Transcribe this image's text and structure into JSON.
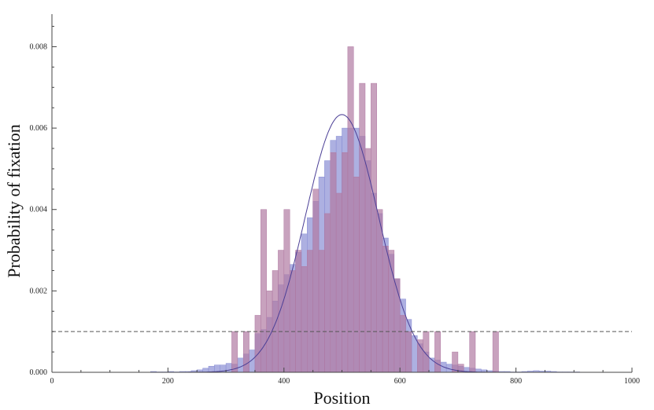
{
  "chart_data": {
    "type": "bar",
    "title": "",
    "xlabel": "Position",
    "ylabel": "Probability of fixation",
    "xlim": [
      0,
      1000
    ],
    "ylim": [
      0,
      0.0088
    ],
    "x_ticks": [
      0,
      200,
      400,
      600,
      800,
      1000
    ],
    "x_tick_labels": [
      "0",
      "200",
      "400",
      "600",
      "800",
      "1000"
    ],
    "y_ticks": [
      0,
      0.002,
      0.004,
      0.006,
      0.008
    ],
    "y_tick_labels": [
      "0.000",
      "0.002",
      "0.004",
      "0.006",
      "0.008"
    ],
    "bin_width": 10,
    "bin_starts": [
      170,
      180,
      190,
      200,
      210,
      220,
      230,
      240,
      250,
      260,
      270,
      280,
      290,
      300,
      310,
      320,
      330,
      340,
      350,
      360,
      370,
      380,
      390,
      400,
      410,
      420,
      430,
      440,
      450,
      460,
      470,
      480,
      490,
      500,
      510,
      520,
      530,
      540,
      550,
      560,
      570,
      580,
      590,
      600,
      610,
      620,
      630,
      640,
      650,
      660,
      670,
      680,
      690,
      700,
      710,
      720,
      730,
      740,
      750,
      760,
      770,
      780,
      790,
      800,
      810,
      820,
      830,
      840,
      850,
      860,
      870,
      880,
      890,
      900
    ],
    "series": [
      {
        "color": "#8a8fd4",
        "values": [
          2e-05,
          1e-05,
          1e-05,
          2e-05,
          1e-05,
          2e-05,
          2e-05,
          4e-05,
          6e-05,
          0.0001,
          0.00015,
          0.00018,
          0.00018,
          0.00022,
          0.0002,
          0.00035,
          0.00045,
          0.00055,
          0.00095,
          0.00105,
          0.00135,
          0.00175,
          0.00215,
          0.0024,
          0.00265,
          0.00295,
          0.0034,
          0.0038,
          0.0042,
          0.0048,
          0.0052,
          0.0057,
          0.0058,
          0.006,
          0.006,
          0.006,
          0.0058,
          0.0052,
          0.0044,
          0.0039,
          0.0033,
          0.0029,
          0.0023,
          0.0018,
          0.0013,
          0.0009,
          0.0007,
          0.0005,
          0.00035,
          0.0003,
          0.00025,
          0.0002,
          0.00018,
          0.00015,
          0.00012,
          0.0001,
          8e-05,
          6e-05,
          4e-05,
          3e-05,
          2e-05,
          2e-05,
          1e-05,
          1e-05,
          2e-05,
          3e-05,
          4e-05,
          3e-05,
          3e-05,
          2e-05,
          1e-05,
          1e-05,
          1e-05,
          1e-05
        ]
      },
      {
        "color": "#b07aa3",
        "values": [
          0,
          0,
          0,
          0,
          0,
          0,
          0,
          0,
          0,
          0,
          0,
          0,
          0,
          0,
          0.001,
          0,
          0.001,
          0,
          0.0014,
          0.004,
          0.002,
          0.0025,
          0.003,
          0.004,
          0.0025,
          0.003,
          0.0026,
          0.003,
          0.0045,
          0.003,
          0.0039,
          0.0054,
          0.0044,
          0.0054,
          0.008,
          0.0048,
          0.0071,
          0.0055,
          0.0071,
          0.004,
          0.0031,
          0.003,
          0.0023,
          0.0014,
          0.001,
          0,
          0.0008,
          0.001,
          0,
          0.001,
          0,
          0,
          0.0005,
          0.0002,
          0,
          0.001,
          0,
          0,
          0,
          0.001,
          0,
          0,
          0,
          0,
          0,
          0,
          0,
          0,
          0,
          0,
          0,
          0,
          0,
          0
        ]
      }
    ],
    "overlay_curve": {
      "type": "normal-density",
      "mean": 500,
      "sd": 63,
      "color": "#4b3f96"
    },
    "reference_line": {
      "y": 0.001,
      "style": "dashed",
      "color": "#555555"
    }
  }
}
